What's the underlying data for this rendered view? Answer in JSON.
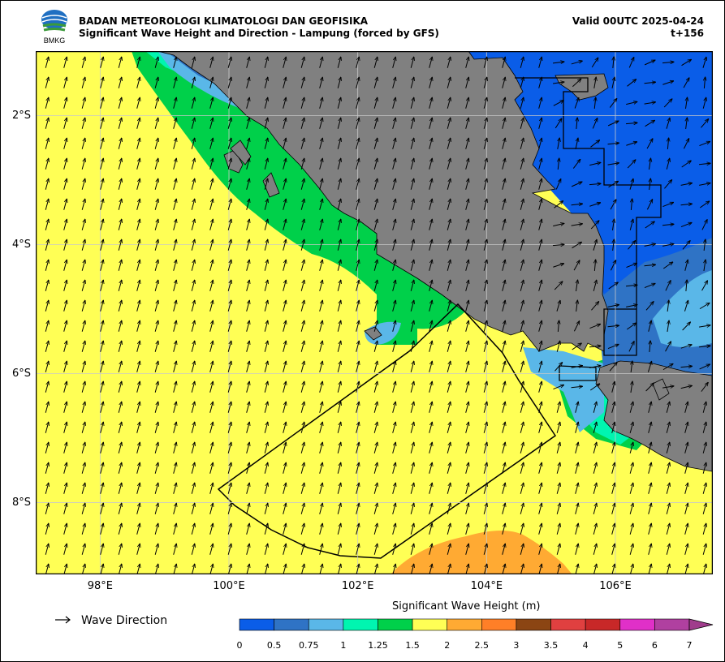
{
  "header": {
    "org": "BADAN METEOROLOGI KLIMATOLOGI DAN GEOFISIKA",
    "subtitle": "Significant Wave Height and Direction - Lampung (forced by GFS)",
    "valid": "Valid 00UTC 2025-04-24",
    "lead": "t+156"
  },
  "logo": {
    "text": "BMKG"
  },
  "map": {
    "lon_range": [
      97.0,
      107.5
    ],
    "lat_range": [
      -9.1,
      -1.0
    ],
    "lat_ticks": [
      {
        "value": -2,
        "label": "2°S"
      },
      {
        "value": -4,
        "label": "4°S"
      },
      {
        "value": -6,
        "label": "6°S"
      },
      {
        "value": -8,
        "label": "8°S"
      }
    ],
    "lon_ticks": [
      {
        "value": 98,
        "label": "98°E"
      },
      {
        "value": 100,
        "label": "100°E"
      },
      {
        "value": 102,
        "label": "102°E"
      },
      {
        "value": 104,
        "label": "104°E"
      },
      {
        "value": 106,
        "label": "106°E"
      }
    ],
    "grid": true,
    "colors": {
      "land": "#808080",
      "sea_default": "#ffff55",
      "grid": "#c8c8c8"
    }
  },
  "legend": {
    "arrow_label": "Wave Direction"
  },
  "colorbar": {
    "title": "Significant Wave Height (m)",
    "levels": [
      "0",
      "0.5",
      "0.75",
      "1",
      "1.25",
      "1.5",
      "2",
      "2.5",
      "3",
      "3.5",
      "4",
      "5",
      "6",
      "7"
    ],
    "colors": [
      "#0a5de8",
      "#2f73c5",
      "#5ab7e8",
      "#00f5b0",
      "#00d04a",
      "#ffff55",
      "#ffaa33",
      "#ff7f27",
      "#8b4513",
      "#e04040",
      "#c82828",
      "#e030c8",
      "#b040a0"
    ],
    "extend_color": "#a03c8c"
  }
}
